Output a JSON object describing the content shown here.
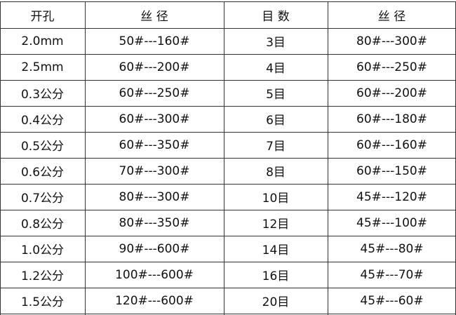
{
  "table": {
    "header": [
      "开孔",
      "丝 径",
      "目 数",
      "丝 径"
    ],
    "rows": [
      [
        "2.0mm",
        "50#---160#",
        "3目",
        "80#---300#"
      ],
      [
        "2.5mm",
        "60#---200#",
        "4目",
        "60#---250#"
      ],
      [
        "0.3公分",
        "60#---250#",
        "5目",
        "60#---200#"
      ],
      [
        "0.4公分",
        "60#---300#",
        "6目",
        "60#---180#"
      ],
      [
        "0.5公分",
        "60#---350#",
        "7目",
        "60#---160#"
      ],
      [
        "0.6公分",
        "70#---300#",
        "8目",
        "60#---150#"
      ],
      [
        "0.7公分",
        "80#---300#",
        "10目",
        "45#---120#"
      ],
      [
        "0.8公分",
        "80#---350#",
        "12目",
        "45#---100#"
      ],
      [
        "1.0公分",
        "90#---600#",
        "14目",
        "45#---80#"
      ],
      [
        "1.2公分",
        "100#---600#",
        "16目",
        "45#---70#"
      ],
      [
        "1.5公分",
        "120#---600#",
        "20目",
        "45#---60#"
      ]
    ]
  }
}
